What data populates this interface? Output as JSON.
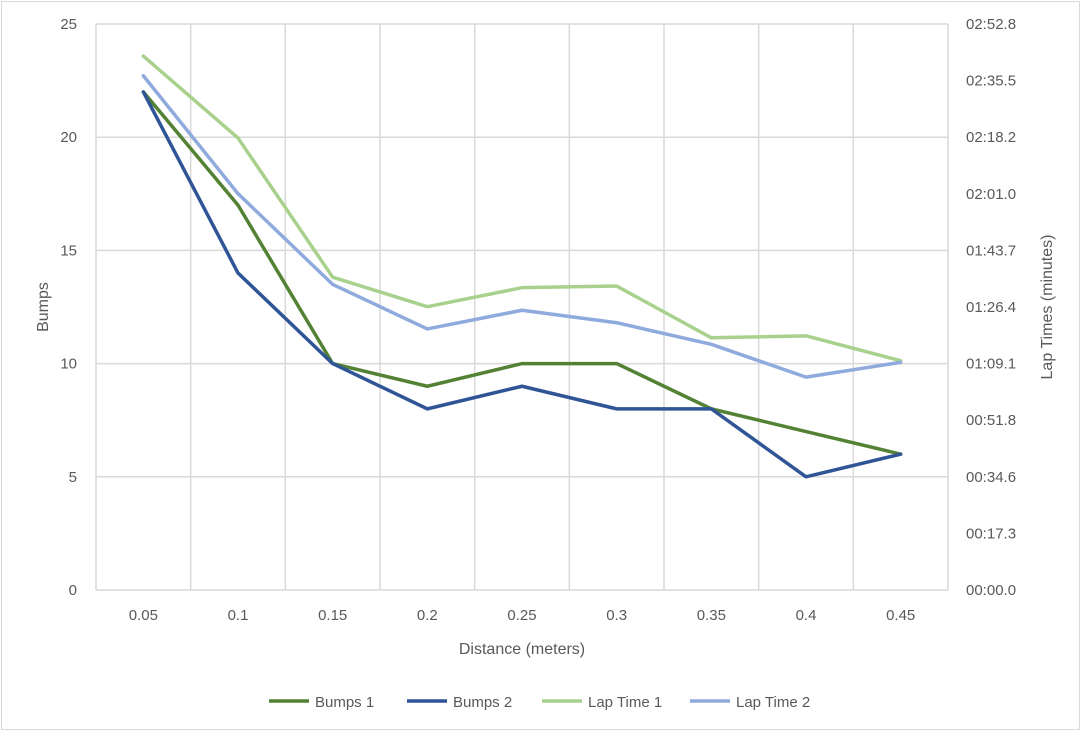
{
  "chart_data": {
    "type": "line",
    "title": "",
    "xlabel": "Distance (meters)",
    "ylabel": "Bumps",
    "y2label": "Lap Times (minutes)",
    "categories": [
      "0.05",
      "0.1",
      "0.15",
      "0.2",
      "0.25",
      "0.3",
      "0.35",
      "0.4",
      "0.45"
    ],
    "ylim": [
      0,
      25
    ],
    "yticks": [
      "0",
      "5",
      "10",
      "15",
      "20",
      "25"
    ],
    "y2lim_seconds": [
      0,
      172.8
    ],
    "y2ticks": [
      "00:00.0",
      "00:17.3",
      "00:34.6",
      "00:51.8",
      "01:09.1",
      "01:26.4",
      "01:43.7",
      "02:01.0",
      "02:18.2",
      "02:35.5",
      "02:52.8"
    ],
    "grid": true,
    "legend_position": "bottom",
    "series": [
      {
        "name": "Bumps 1",
        "axis": "left",
        "color": "#548235",
        "values": [
          22,
          17,
          10,
          9,
          10,
          10,
          8,
          7,
          6
        ]
      },
      {
        "name": "Bumps 2",
        "axis": "left",
        "color": "#2f5597",
        "values": [
          22,
          14,
          10,
          8,
          9,
          8,
          8,
          5,
          6
        ]
      },
      {
        "name": "Lap Time 1",
        "axis": "right",
        "color": "#a9d18e",
        "values_seconds": [
          163,
          138,
          95.5,
          86.5,
          92.3,
          92.8,
          77,
          77.6,
          70
        ]
      },
      {
        "name": "Lap Time 2",
        "axis": "right",
        "color": "#8faadc",
        "values_seconds": [
          157,
          121,
          93.3,
          79.7,
          85.4,
          81.6,
          75,
          65,
          69.5
        ]
      }
    ]
  }
}
